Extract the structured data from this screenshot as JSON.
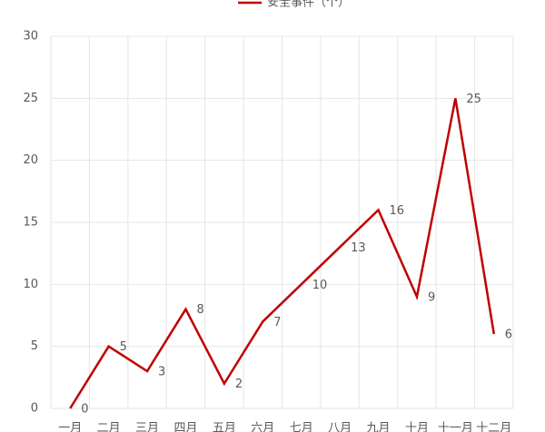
{
  "chart_data": {
    "type": "line",
    "categories": [
      "一月",
      "二月",
      "三月",
      "四月",
      "五月",
      "六月",
      "七月",
      "八月",
      "九月",
      "十月",
      "十一月",
      "十二月"
    ],
    "series": [
      {
        "name": "安全事件（个）",
        "color": "#c00000",
        "values": [
          0,
          5,
          3,
          8,
          2,
          7,
          10,
          13,
          16,
          9,
          25,
          6
        ]
      }
    ],
    "ylim": [
      0,
      30
    ],
    "yticks": [
      0,
      5,
      10,
      15,
      20,
      25,
      30
    ],
    "grid": true,
    "legend": "top"
  }
}
